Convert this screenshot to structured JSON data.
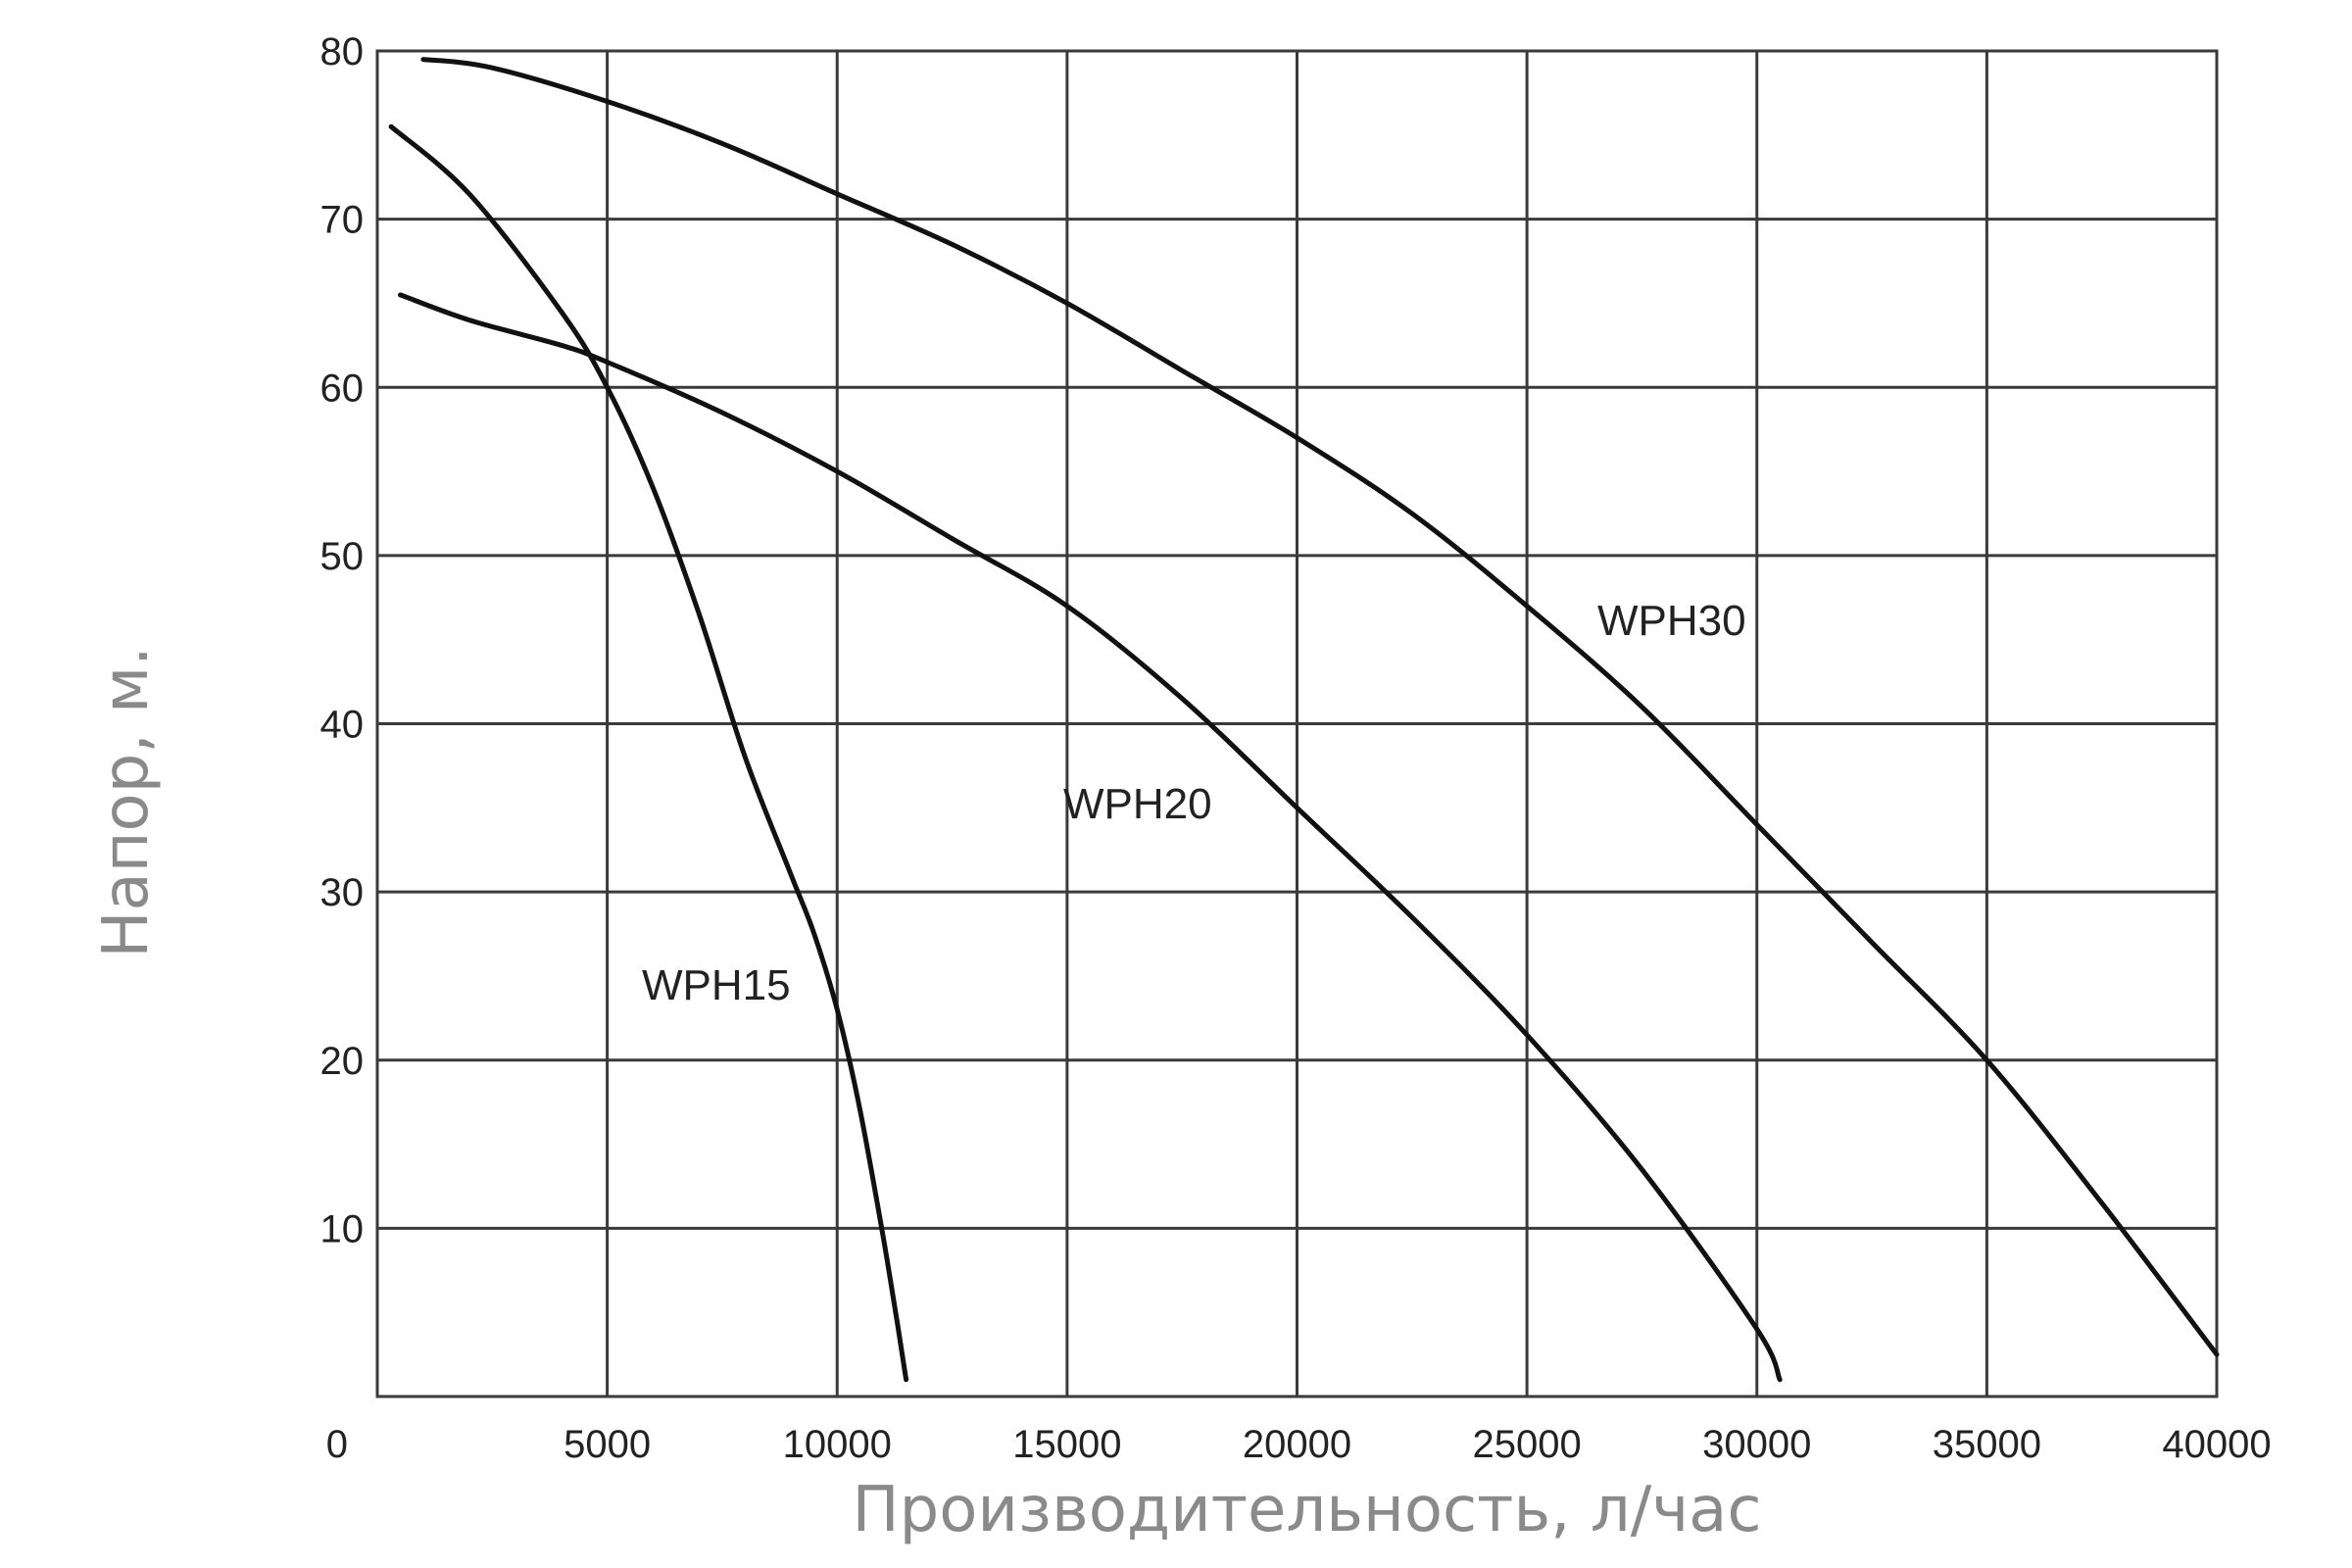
{
  "chart_data": {
    "type": "line",
    "title": "",
    "xlabel": "Производительность, л/час",
    "ylabel": "Напор, м.",
    "xlim": [
      0,
      40000
    ],
    "ylim": [
      0,
      80
    ],
    "grid": true,
    "x_ticks": [
      0,
      5000,
      10000,
      15000,
      20000,
      25000,
      30000,
      35000,
      40000
    ],
    "y_ticks": [
      10,
      20,
      30,
      40,
      50,
      60,
      70,
      80
    ],
    "series": [
      {
        "name": "WPH15",
        "x": [
          300,
          2000,
          4000,
          5000,
          6000,
          7000,
          8000,
          9000,
          9500,
          10000,
          10500,
          11000,
          11300,
          11500
        ],
        "y": [
          75.5,
          71.5,
          64.5,
          60,
          54,
          46.5,
          38,
          31,
          27.5,
          23,
          17,
          9.5,
          4.5,
          1
        ]
      },
      {
        "name": "WPH20",
        "x": [
          500,
          2000,
          4000,
          5000,
          7500,
          10000,
          12500,
          15000,
          17500,
          20000,
          22500,
          25000,
          27500,
          30000,
          30500
        ],
        "y": [
          65.5,
          64,
          62.5,
          61.5,
          58.5,
          55,
          51,
          47,
          41.5,
          35,
          28.5,
          21.5,
          13.5,
          4,
          1
        ]
      },
      {
        "name": "WPH30",
        "x": [
          1000,
          2500,
          5000,
          7500,
          10000,
          12500,
          15000,
          17500,
          20000,
          22500,
          25000,
          27500,
          30000,
          32500,
          35000,
          37500,
          40000
        ],
        "y": [
          79.5,
          79,
          77,
          74.5,
          71.5,
          68.5,
          65,
          61,
          57,
          52.5,
          47,
          41,
          34,
          27,
          20,
          11.5,
          2.5
        ]
      }
    ]
  }
}
